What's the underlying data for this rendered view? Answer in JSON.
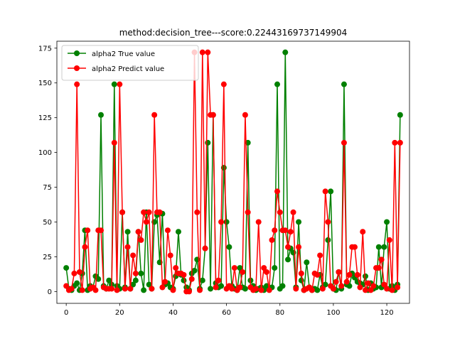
{
  "chart_data": {
    "type": "line",
    "title": "method:decision_tree---score:0.22443169737149904",
    "xlabel": "",
    "ylabel": "",
    "xlim": [
      -3.5,
      128.5
    ],
    "ylim": [
      -8.5,
      180
    ],
    "xticks": [
      0,
      20,
      40,
      60,
      80,
      100,
      120
    ],
    "yticks": [
      0,
      25,
      50,
      75,
      100,
      125,
      150,
      175
    ],
    "grid": false,
    "legend": "top-left",
    "series": [
      {
        "name": "alpha2 True value",
        "color": "#008000",
        "values": [
          17,
          2,
          1,
          4,
          6,
          1,
          13,
          44,
          1,
          4,
          3,
          11,
          9,
          127,
          4,
          2,
          8,
          5,
          149,
          4,
          2,
          57,
          3,
          43,
          2,
          5,
          8,
          43,
          13,
          1,
          57,
          5,
          2,
          50,
          55,
          21,
          56,
          5,
          6,
          3,
          2,
          11,
          43,
          12,
          8,
          3,
          1,
          13,
          15,
          23,
          2,
          8,
          31,
          107,
          2,
          127,
          6,
          3,
          4,
          89,
          50,
          32,
          4,
          2,
          1,
          17,
          3,
          2,
          107,
          8,
          4,
          1,
          2,
          3,
          1,
          4,
          2,
          3,
          17,
          149,
          2,
          4,
          172,
          23,
          31,
          28,
          3,
          50,
          8,
          1,
          21,
          3,
          1,
          2,
          1,
          12,
          3,
          5,
          37,
          72,
          2,
          1,
          14,
          2,
          149,
          5,
          4,
          13,
          10,
          7,
          6,
          5,
          11,
          1,
          6,
          2,
          3,
          32,
          3,
          32,
          50,
          2,
          4,
          1,
          5,
          127
        ]
      },
      {
        "name": "alpha2 Predict value",
        "color": "#ff0000",
        "values": [
          4,
          1,
          2,
          13,
          149,
          14,
          1,
          32,
          44,
          2,
          3,
          1,
          44,
          44,
          3,
          2,
          2,
          2,
          107,
          1,
          149,
          57,
          2,
          32,
          2,
          26,
          13,
          43,
          37,
          57,
          50,
          57,
          2,
          127,
          57,
          57,
          3,
          7,
          44,
          26,
          1,
          17,
          13,
          13,
          12,
          0,
          0,
          9,
          172,
          57,
          1,
          172,
          31,
          172,
          127,
          127,
          3,
          8,
          50,
          149,
          2,
          4,
          2,
          17,
          1,
          3,
          14,
          127,
          57,
          3,
          1,
          2,
          50,
          1,
          17,
          14,
          1,
          37,
          44,
          72,
          57,
          44,
          44,
          32,
          43,
          57,
          2,
          32,
          13,
          1,
          2,
          3,
          1,
          13,
          12,
          26,
          2,
          72,
          50,
          4,
          2,
          7,
          14,
          4,
          107,
          7,
          12,
          32,
          32,
          12,
          3,
          43,
          1,
          6,
          1,
          4,
          17,
          17,
          23,
          5,
          2,
          37,
          1,
          107,
          3,
          107
        ]
      }
    ]
  }
}
